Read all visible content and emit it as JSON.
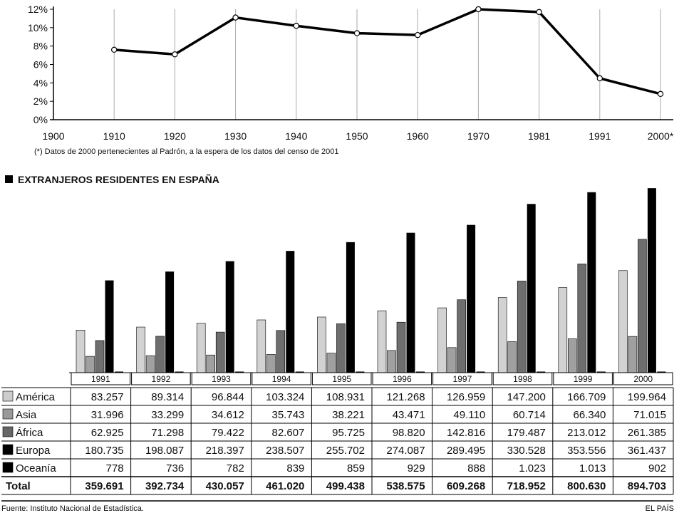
{
  "chart_data": [
    {
      "type": "line",
      "x": [
        "1900",
        "1910",
        "1920",
        "1930",
        "1940",
        "1950",
        "1960",
        "1970",
        "1981",
        "1991",
        "2000*"
      ],
      "y_percent": [
        null,
        7.6,
        7.1,
        11.1,
        10.2,
        9.4,
        9.2,
        12.0,
        11.7,
        4.5,
        2.8
      ],
      "ylim": [
        0,
        12
      ],
      "y_ticks": [
        "0%",
        "2%",
        "4%",
        "6%",
        "8%",
        "10%",
        "12%"
      ],
      "grid": "vertical",
      "footnote": "(*) Datos de 2000 pertenecientes al Padrón, a la espera de los datos del censo de 2001"
    },
    {
      "type": "bar",
      "title": "EXTRANJEROS RESIDENTES EN ESPAÑA",
      "categories": [
        "1991",
        "1992",
        "1993",
        "1994",
        "1995",
        "1996",
        "1997",
        "1998",
        "1999",
        "2000"
      ],
      "series": [
        {
          "name": "América",
          "color": "#cccccc",
          "values": [
            83257,
            89314,
            96844,
            103324,
            108931,
            121268,
            126959,
            147200,
            166709,
            199964
          ],
          "labels": [
            "83.257",
            "89.314",
            "96.844",
            "103.324",
            "108.931",
            "121.268",
            "126.959",
            "147.200",
            "166.709",
            "199.964"
          ]
        },
        {
          "name": "Asia",
          "color": "#999999",
          "values": [
            31996,
            33299,
            34612,
            35743,
            38221,
            43471,
            49110,
            60714,
            66340,
            71015
          ],
          "labels": [
            "31.996",
            "33.299",
            "34.612",
            "35.743",
            "38.221",
            "43.471",
            "49.110",
            "60.714",
            "66.340",
            "71.015"
          ]
        },
        {
          "name": "África",
          "color": "#666666",
          "values": [
            62925,
            71298,
            79422,
            82607,
            95725,
            98820,
            142816,
            179487,
            213012,
            261385
          ],
          "labels": [
            "62.925",
            "71.298",
            "79.422",
            "82.607",
            "95.725",
            "98.820",
            "142.816",
            "179.487",
            "213.012",
            "261.385"
          ]
        },
        {
          "name": "Europa",
          "color": "#000000",
          "values": [
            180735,
            198087,
            218397,
            238507,
            255702,
            274087,
            289495,
            330528,
            353556,
            361437
          ],
          "labels": [
            "180.735",
            "198.087",
            "218.397",
            "238.507",
            "255.702",
            "274.087",
            "289.495",
            "330.528",
            "353.556",
            "361.437"
          ]
        },
        {
          "name": "Oceanía",
          "color": "#000000",
          "values": [
            778,
            736,
            782,
            839,
            859,
            929,
            888,
            1023,
            1013,
            902
          ],
          "labels": [
            "778",
            "736",
            "782",
            "839",
            "859",
            "929",
            "888",
            "1.023",
            "1.013",
            "902"
          ]
        }
      ],
      "total": {
        "name": "Total",
        "labels": [
          "359.691",
          "392.734",
          "430.057",
          "461.020",
          "499.438",
          "538.575",
          "609.268",
          "718.952",
          "800.630",
          "894.703"
        ]
      },
      "ylim": [
        0,
        370000
      ],
      "legend": "left-of-table"
    }
  ],
  "source": "Fuente: Instituto Nacional de Estadística.",
  "publisher": "EL PAÍS"
}
